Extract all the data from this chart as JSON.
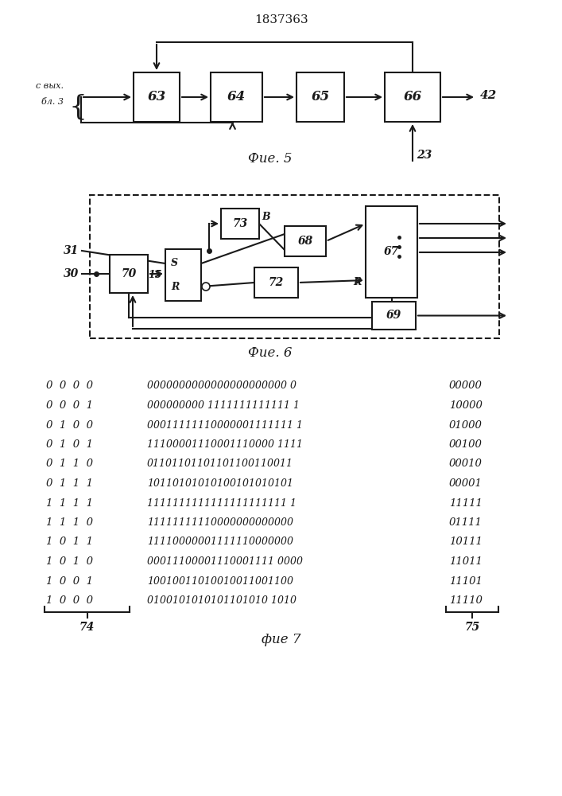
{
  "title": "1837363",
  "fig5_caption": "Фие. 5",
  "fig6_caption": "Фие. 6",
  "fig7_caption": "фие 7",
  "line_color": "#1a1a1a",
  "box_color": "#ffffff",
  "col1_data": [
    "0  0  0  0",
    "0  0  0  1",
    "0  1  0  0",
    "0  1  0  1",
    "0  1  1  0",
    "0  1  1  1",
    "1  1  1  1",
    "1  1  1  0",
    "1  0  1  1",
    "1  0  1  0",
    "1  0  0  1",
    "1  0  0  0"
  ],
  "col2_data": [
    "0000000000000000000000 0",
    "000000000 1111111111111 1",
    "00011111110000001111111 1",
    "11100001110001110000 1111",
    "01101101101101100110011",
    "10110101010100101010101",
    "1111111111111111111111 1",
    "11111111110000000000000",
    "11110000001111110000000",
    "00011100001110001111 0000",
    "10010011010010011001100",
    "0100101010101101010 1010"
  ],
  "col3_data": [
    "00000",
    "10000",
    "01000",
    "00100",
    "00010",
    "00001",
    "11111",
    "01111",
    "10111",
    "11011",
    "11101",
    "11110"
  ]
}
